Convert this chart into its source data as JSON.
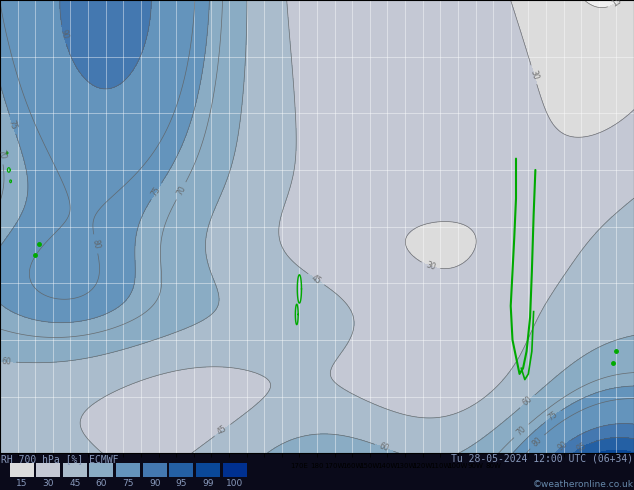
{
  "title_left": "RH 700 hPa [%] ECMWF",
  "title_right": "Tu 28-05-2024 12:00 UTC (06+34)",
  "copyright": "©weatheronline.co.uk",
  "legend_labels": [
    "15",
    "30",
    "45",
    "60",
    "75",
    "90",
    "95",
    "99",
    "100"
  ],
  "fill_levels": [
    0,
    15,
    30,
    45,
    60,
    75,
    90,
    95,
    99,
    101
  ],
  "fill_colors": [
    "#f0f0f0",
    "#dcdcdc",
    "#c4c8d4",
    "#aabccc",
    "#8aacc4",
    "#6494bc",
    "#4478b0",
    "#2460a4",
    "#0a4898"
  ],
  "legend_colors": [
    "#dcdcdc",
    "#c4c8d4",
    "#aabccc",
    "#8aacc4",
    "#6494bc",
    "#4478b0",
    "#2460a4",
    "#0a4898",
    "#003090"
  ],
  "contour_levels": [
    15,
    30,
    45,
    60,
    70,
    75,
    80,
    90,
    95
  ],
  "contour_color": "#606060",
  "green_color": "#00aa00",
  "bottom_bg": "#0a0a1a",
  "figsize": [
    6.34,
    4.9
  ],
  "dpi": 100
}
